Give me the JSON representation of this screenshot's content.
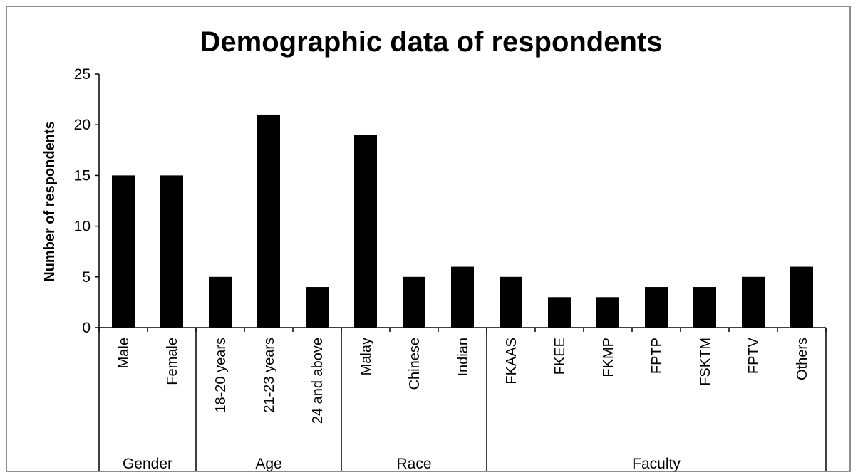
{
  "chart_data": {
    "type": "bar",
    "title": "Demographic data of respondents",
    "xlabel": "",
    "ylabel": "Number of respondents",
    "ylim": [
      0,
      25
    ],
    "yticks": [
      "0",
      "5",
      "10",
      "15",
      "20",
      "25"
    ],
    "grid": false,
    "legend": "none",
    "bar_color": "#000000",
    "categories": [
      "Male",
      "Female",
      "18-20 years",
      "21-23 years",
      "24 and above",
      "Malay",
      "Chinese",
      "Indian",
      "FKAAS",
      "FKEE",
      "FKMP",
      "FPTP",
      "FSKTM",
      "FPTV",
      "Others"
    ],
    "values": [
      15,
      15,
      5,
      21,
      4,
      19,
      5,
      6,
      5,
      3,
      3,
      4,
      4,
      5,
      6
    ],
    "groups": [
      {
        "name": "Gender",
        "count": 2
      },
      {
        "name": "Age",
        "count": 3
      },
      {
        "name": "Race",
        "count": 3
      },
      {
        "name": "Faculty",
        "count": 7
      }
    ]
  }
}
